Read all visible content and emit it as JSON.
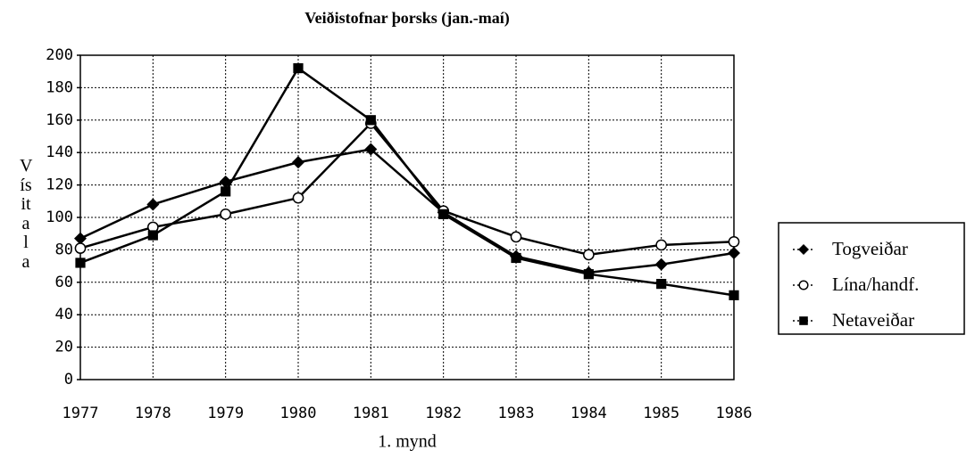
{
  "chart_data": {
    "type": "line",
    "title": "Veiðistofnar þorsks (jan.-maí)",
    "ylabel": "Vísitala",
    "caption": "1. mynd",
    "categories": [
      "1977",
      "1978",
      "1979",
      "1980",
      "1981",
      "1982",
      "1983",
      "1984",
      "1985",
      "1986"
    ],
    "series": [
      {
        "name": "Togveiðar",
        "color": "#000000",
        "marker": "diamond",
        "values": [
          87,
          108,
          122,
          134,
          142,
          103,
          76,
          66,
          71,
          78
        ]
      },
      {
        "name": "Lína/handf.",
        "color": "#000000",
        "marker": "circle-open",
        "values": [
          81,
          94,
          102,
          112,
          158,
          104,
          88,
          77,
          83,
          85
        ]
      },
      {
        "name": "Netaveiðar",
        "color": "#000000",
        "marker": "square",
        "values": [
          72,
          89,
          116,
          192,
          160,
          102,
          75,
          65,
          59,
          52
        ]
      }
    ],
    "ylim": [
      0,
      200
    ],
    "yticks": [
      0,
      20,
      40,
      60,
      80,
      100,
      120,
      140,
      160,
      180,
      200
    ],
    "grid": true,
    "legend": "right"
  }
}
